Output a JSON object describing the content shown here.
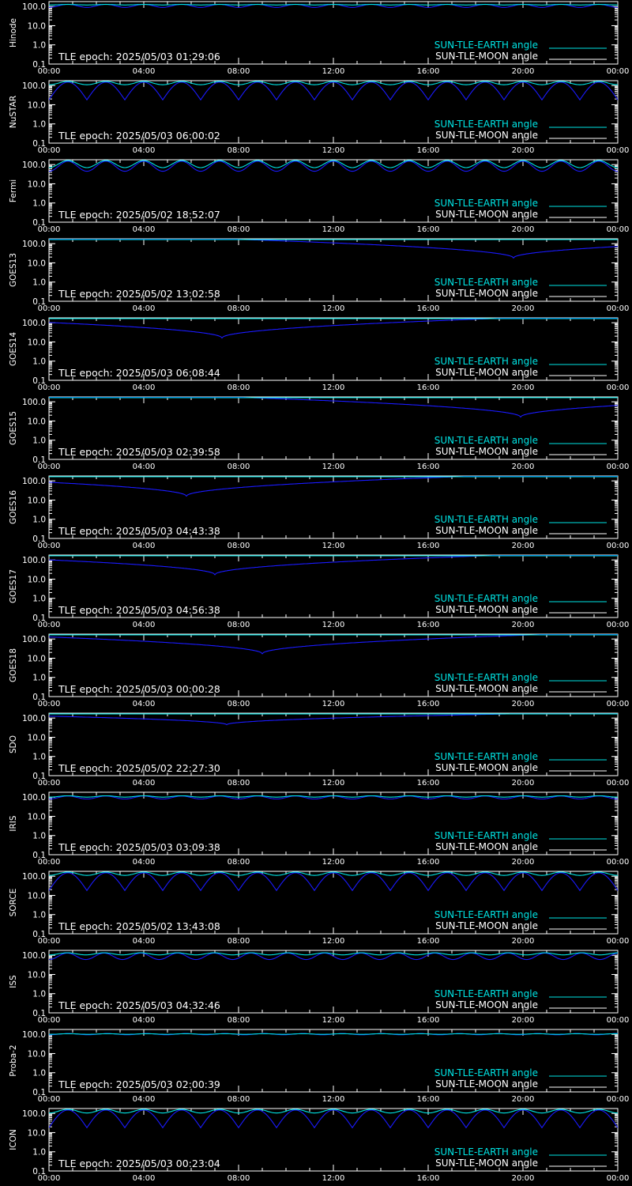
{
  "colors": {
    "background": "#000000",
    "axes": "#ffffff",
    "sun_tle_earth": "#00e5e5",
    "sun_tle_moon": "#1a1aff",
    "moon_legend_text": "#ffffff"
  },
  "legend": {
    "earth_label": "SUN-TLE-EARTH angle",
    "moon_label": "SUN-TLE-MOON angle",
    "placement": "bottom-right"
  },
  "chart_data": [
    {
      "type": "line",
      "satellite": "Hinode",
      "epoch_label": "TLE epoch: 2025/05/03 01:29:06",
      "x_ticks": [
        "00:00",
        "04:00",
        "08:00",
        "12:00",
        "16:00",
        "20:00",
        "00:00"
      ],
      "y_ticks": [
        "0.1",
        "1.0",
        "10.0",
        "100.0"
      ],
      "y_scale": "log",
      "ylim": [
        0.1,
        180
      ],
      "xlim_hours": [
        0,
        24
      ],
      "moon": {
        "kind": "periodic",
        "period": 1.6,
        "min": 90,
        "max": 130,
        "cusp": false
      },
      "earth": {
        "kind": "periodic",
        "period": 1.6,
        "min": 120,
        "max": 128,
        "cusp": false
      }
    },
    {
      "type": "line",
      "satellite": "NuSTAR",
      "epoch_label": "TLE epoch: 2025/05/03 06:00:02",
      "x_ticks": [
        "00:00",
        "04:00",
        "08:00",
        "12:00",
        "16:00",
        "20:00",
        "00:00"
      ],
      "y_ticks": [
        "0.1",
        "1.0",
        "10.0",
        "100.0"
      ],
      "y_scale": "log",
      "ylim": [
        0.1,
        180
      ],
      "xlim_hours": [
        0,
        24
      ],
      "moon": {
        "kind": "periodic",
        "period": 1.6,
        "min": 18,
        "max": 150,
        "cusp": true
      },
      "earth": {
        "kind": "periodic",
        "period": 1.6,
        "min": 110,
        "max": 165,
        "cusp": false
      }
    },
    {
      "type": "line",
      "satellite": "Fermi",
      "epoch_label": "TLE epoch: 2025/05/02 18:52:07",
      "x_ticks": [
        "00:00",
        "04:00",
        "08:00",
        "12:00",
        "16:00",
        "20:00",
        "00:00"
      ],
      "y_ticks": [
        "0.1",
        "1.0",
        "10.0",
        "100.0"
      ],
      "y_scale": "log",
      "ylim": [
        0.1,
        180
      ],
      "xlim_hours": [
        0,
        24
      ],
      "moon": {
        "kind": "periodic",
        "period": 1.6,
        "min": 45,
        "max": 150,
        "cusp": false
      },
      "earth": {
        "kind": "periodic",
        "period": 1.6,
        "min": 70,
        "max": 165,
        "cusp": false
      }
    },
    {
      "type": "line",
      "satellite": "GOES13",
      "epoch_label": "TLE epoch: 2025/05/02 13:02:58",
      "x_ticks": [
        "00:00",
        "04:00",
        "08:00",
        "12:00",
        "16:00",
        "20:00",
        "00:00"
      ],
      "y_ticks": [
        "0.1",
        "1.0",
        "10.0",
        "100.0"
      ],
      "y_scale": "log",
      "ylim": [
        0.1,
        180
      ],
      "xlim_hours": [
        0,
        24
      ],
      "moon": {
        "kind": "dip",
        "center": 19.6,
        "min": 18,
        "max": 175
      },
      "earth": {
        "kind": "flat",
        "value": 165
      }
    },
    {
      "type": "line",
      "satellite": "GOES14",
      "epoch_label": "TLE epoch: 2025/05/03 06:08:44",
      "x_ticks": [
        "00:00",
        "04:00",
        "08:00",
        "12:00",
        "16:00",
        "20:00",
        "00:00"
      ],
      "y_ticks": [
        "0.1",
        "1.0",
        "10.0",
        "100.0"
      ],
      "y_scale": "log",
      "ylim": [
        0.1,
        180
      ],
      "xlim_hours": [
        0,
        24
      ],
      "moon": {
        "kind": "dip",
        "center": 7.3,
        "min": 16,
        "max": 175
      },
      "earth": {
        "kind": "flat",
        "value": 165
      }
    },
    {
      "type": "line",
      "satellite": "GOES15",
      "epoch_label": "TLE epoch: 2025/05/03 02:39:58",
      "x_ticks": [
        "00:00",
        "04:00",
        "08:00",
        "12:00",
        "16:00",
        "20:00",
        "00:00"
      ],
      "y_ticks": [
        "0.1",
        "1.0",
        "10.0",
        "100.0"
      ],
      "y_scale": "log",
      "ylim": [
        0.1,
        180
      ],
      "xlim_hours": [
        0,
        24
      ],
      "moon": {
        "kind": "dip",
        "center": 19.9,
        "min": 16,
        "max": 175
      },
      "earth": {
        "kind": "flat",
        "value": 165
      }
    },
    {
      "type": "line",
      "satellite": "GOES16",
      "epoch_label": "TLE epoch: 2025/05/03 04:43:38",
      "x_ticks": [
        "00:00",
        "04:00",
        "08:00",
        "12:00",
        "16:00",
        "20:00",
        "00:00"
      ],
      "y_ticks": [
        "0.1",
        "1.0",
        "10.0",
        "100.0"
      ],
      "y_scale": "log",
      "ylim": [
        0.1,
        180
      ],
      "xlim_hours": [
        0,
        24
      ],
      "moon": {
        "kind": "dip",
        "center": 5.8,
        "min": 16,
        "max": 175
      },
      "earth": {
        "kind": "flat",
        "value": 165
      }
    },
    {
      "type": "line",
      "satellite": "GOES17",
      "epoch_label": "TLE epoch: 2025/05/03 04:56:38",
      "x_ticks": [
        "00:00",
        "04:00",
        "08:00",
        "12:00",
        "16:00",
        "20:00",
        "00:00"
      ],
      "y_ticks": [
        "0.1",
        "1.0",
        "10.0",
        "100.0"
      ],
      "y_scale": "log",
      "ylim": [
        0.1,
        180
      ],
      "xlim_hours": [
        0,
        24
      ],
      "moon": {
        "kind": "dip",
        "center": 7.0,
        "min": 17,
        "max": 175
      },
      "earth": {
        "kind": "flat",
        "value": 165
      }
    },
    {
      "type": "line",
      "satellite": "GOES18",
      "epoch_label": "TLE epoch: 2025/05/03 00:00:28",
      "x_ticks": [
        "00:00",
        "04:00",
        "08:00",
        "12:00",
        "16:00",
        "20:00",
        "00:00"
      ],
      "y_ticks": [
        "0.1",
        "1.0",
        "10.0",
        "100.0"
      ],
      "y_scale": "log",
      "ylim": [
        0.1,
        180
      ],
      "xlim_hours": [
        0,
        24
      ],
      "moon": {
        "kind": "dip",
        "center": 9.0,
        "min": 17,
        "max": 175
      },
      "earth": {
        "kind": "flat",
        "value": 165
      }
    },
    {
      "type": "line",
      "satellite": "SDO",
      "epoch_label": "TLE epoch: 2025/05/02 22:27:30",
      "x_ticks": [
        "00:00",
        "04:00",
        "08:00",
        "12:00",
        "16:00",
        "20:00",
        "00:00"
      ],
      "y_ticks": [
        "0.1",
        "1.0",
        "10.0",
        "100.0"
      ],
      "y_scale": "log",
      "ylim": [
        0.1,
        180
      ],
      "xlim_hours": [
        0,
        24
      ],
      "moon": {
        "kind": "dip",
        "center": 7.5,
        "min": 45,
        "max": 165
      },
      "earth": {
        "kind": "flat",
        "value": 165
      }
    },
    {
      "type": "line",
      "satellite": "IRIS",
      "epoch_label": "TLE epoch: 2025/05/03 03:09:38",
      "x_ticks": [
        "00:00",
        "04:00",
        "08:00",
        "12:00",
        "16:00",
        "20:00",
        "00:00"
      ],
      "y_ticks": [
        "0.1",
        "1.0",
        "10.0",
        "100.0"
      ],
      "y_scale": "log",
      "ylim": [
        0.1,
        180
      ],
      "xlim_hours": [
        0,
        24
      ],
      "moon": {
        "kind": "periodic",
        "period": 1.6,
        "min": 80,
        "max": 115,
        "cusp": false
      },
      "earth": {
        "kind": "periodic",
        "period": 1.6,
        "min": 100,
        "max": 118,
        "cusp": false
      }
    },
    {
      "type": "line",
      "satellite": "SORCE",
      "epoch_label": "TLE epoch: 2025/05/02 13:43:08",
      "x_ticks": [
        "00:00",
        "04:00",
        "08:00",
        "12:00",
        "16:00",
        "20:00",
        "00:00"
      ],
      "y_ticks": [
        "0.1",
        "1.0",
        "10.0",
        "100.0"
      ],
      "y_scale": "log",
      "ylim": [
        0.1,
        180
      ],
      "xlim_hours": [
        0,
        24
      ],
      "moon": {
        "kind": "periodic",
        "period": 1.6,
        "min": 18,
        "max": 150,
        "cusp": true
      },
      "earth": {
        "kind": "periodic",
        "period": 1.6,
        "min": 110,
        "max": 165,
        "cusp": false
      }
    },
    {
      "type": "line",
      "satellite": "ISS",
      "epoch_label": "TLE epoch: 2025/05/03 04:32:46",
      "x_ticks": [
        "00:00",
        "04:00",
        "08:00",
        "12:00",
        "16:00",
        "20:00",
        "00:00"
      ],
      "y_ticks": [
        "0.1",
        "1.0",
        "10.0",
        "100.0"
      ],
      "y_scale": "log",
      "ylim": [
        0.1,
        180
      ],
      "xlim_hours": [
        0,
        24
      ],
      "moon": {
        "kind": "periodic",
        "period": 1.55,
        "min": 60,
        "max": 130,
        "cusp": false
      },
      "earth": {
        "kind": "periodic",
        "period": 1.55,
        "min": 105,
        "max": 135,
        "cusp": false
      }
    },
    {
      "type": "line",
      "satellite": "Proba-2",
      "epoch_label": "TLE epoch: 2025/05/03 02:00:39",
      "x_ticks": [
        "00:00",
        "04:00",
        "08:00",
        "12:00",
        "16:00",
        "20:00",
        "00:00"
      ],
      "y_ticks": [
        "0.1",
        "1.0",
        "10.0",
        "100.0"
      ],
      "y_scale": "log",
      "ylim": [
        0.1,
        180
      ],
      "xlim_hours": [
        0,
        24
      ],
      "moon": {
        "kind": "periodic",
        "period": 1.65,
        "min": 95,
        "max": 110,
        "cusp": false
      },
      "earth": {
        "kind": "periodic",
        "period": 1.65,
        "min": 100,
        "max": 108,
        "cusp": false
      }
    },
    {
      "type": "line",
      "satellite": "ICON",
      "epoch_label": "TLE epoch: 2025/05/03 00:23:04",
      "x_ticks": [
        "00:00",
        "04:00",
        "08:00",
        "12:00",
        "16:00",
        "20:00",
        "00:00"
      ],
      "y_ticks": [
        "0.1",
        "1.0",
        "10.0",
        "100.0"
      ],
      "y_scale": "log",
      "ylim": [
        0.1,
        180
      ],
      "xlim_hours": [
        0,
        24
      ],
      "moon": {
        "kind": "periodic",
        "period": 1.6,
        "min": 18,
        "max": 150,
        "cusp": true
      },
      "earth": {
        "kind": "periodic",
        "period": 1.6,
        "min": 105,
        "max": 165,
        "cusp": false
      }
    }
  ]
}
